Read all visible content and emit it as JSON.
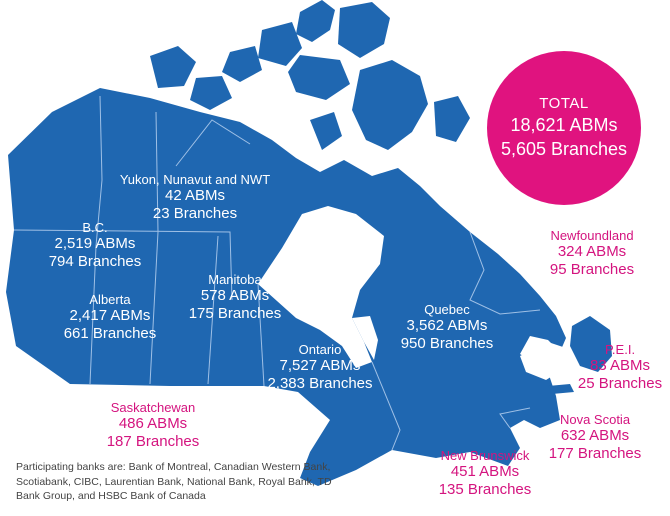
{
  "colors": {
    "map": "#1f67b1",
    "accent": "#e0137f",
    "label_out": "#d4147f",
    "borders": "#9fc0e6"
  },
  "total": {
    "title": "TOTAL",
    "abms": "18,621 ABMs",
    "branches": "5,605 Branches"
  },
  "regions": [
    {
      "id": "north",
      "name": "Yukon, Nunavut and NWT",
      "abms": "42 ABMs",
      "branches": "23 Branches"
    },
    {
      "id": "bc",
      "name": "B.C.",
      "abms": "2,519 ABMs",
      "branches": "794 Branches"
    },
    {
      "id": "alberta",
      "name": "Alberta",
      "abms": "2,417 ABMs",
      "branches": "661 Branches"
    },
    {
      "id": "saskatchewan",
      "name": "Saskatchewan",
      "abms": "486 ABMs",
      "branches": "187 Branches"
    },
    {
      "id": "manitoba",
      "name": "Manitoba",
      "abms": "578 ABMs",
      "branches": "175 Branches"
    },
    {
      "id": "ontario",
      "name": "Ontario",
      "abms": "7,527 ABMs",
      "branches": "2,383 Branches"
    },
    {
      "id": "quebec",
      "name": "Quebec",
      "abms": "3,562 ABMs",
      "branches": "950 Branches"
    },
    {
      "id": "newfoundland",
      "name": "Newfoundland",
      "abms": "324 ABMs",
      "branches": "95 Branches"
    },
    {
      "id": "pei",
      "name": "P.E.I.",
      "abms": "83 ABMs",
      "branches": "25 Branches"
    },
    {
      "id": "nova-scotia",
      "name": "Nova Scotia",
      "abms": "632 ABMs",
      "branches": "177 Branches"
    },
    {
      "id": "new-brunswick",
      "name": "New Brunswick",
      "abms": "451 ABMs",
      "branches": "135 Branches"
    }
  ],
  "footnote": "Participating banks are: Bank of Montreal, Canadian Western Bank, Scotiabank, CIBC, Laurentian Bank, National Bank, Royal Bank, TD Bank Group, and HSBC Bank of Canada"
}
